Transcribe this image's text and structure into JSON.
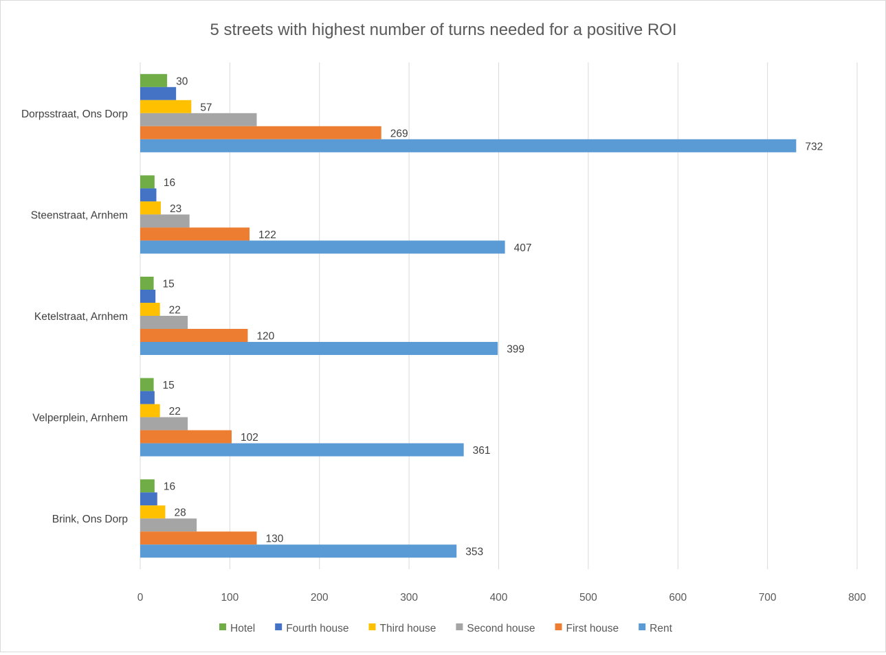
{
  "chart_data": {
    "type": "bar",
    "orientation": "horizontal",
    "title": "5 streets with highest number of turns needed for a positive ROI",
    "xlabel": "",
    "ylabel": "",
    "xlim": [
      0,
      800
    ],
    "ticks": [
      "0",
      "100",
      "200",
      "300",
      "400",
      "500",
      "600",
      "700",
      "800"
    ],
    "tick_values": [
      0,
      100,
      200,
      300,
      400,
      500,
      600,
      700,
      800
    ],
    "grid": true,
    "legend_position": "bottom",
    "categories": [
      "Dorpsstraat, Ons Dorp",
      "Steenstraat, Arnhem",
      "Ketelstraat, Arnhem",
      "Velperplein, Arnhem",
      "Brink, Ons Dorp"
    ],
    "series": [
      {
        "name": "Hotel",
        "color": "#70ad47",
        "values": [
          30,
          16,
          15,
          15,
          16
        ],
        "labels": [
          "30",
          "16",
          "15",
          "15",
          "16"
        ]
      },
      {
        "name": "Fourth house",
        "color": "#4472c4",
        "values": [
          40,
          18,
          17,
          16,
          19
        ],
        "labels": [
          "",
          "",
          "",
          "",
          ""
        ]
      },
      {
        "name": "Third house",
        "color": "#ffc000",
        "values": [
          57,
          23,
          22,
          22,
          28
        ],
        "labels": [
          "57",
          "23",
          "22",
          "22",
          "28"
        ]
      },
      {
        "name": "Second house",
        "color": "#a5a5a5",
        "values": [
          130,
          55,
          53,
          53,
          63
        ],
        "labels": [
          "",
          "",
          "",
          "",
          ""
        ]
      },
      {
        "name": "First house",
        "color": "#ed7d31",
        "values": [
          269,
          122,
          120,
          102,
          130
        ],
        "labels": [
          "269",
          "122",
          "120",
          "102",
          "130"
        ]
      },
      {
        "name": "Rent",
        "color": "#5b9bd5",
        "values": [
          732,
          407,
          399,
          361,
          353
        ],
        "labels": [
          "732",
          "407",
          "399",
          "361",
          "353"
        ]
      }
    ]
  }
}
